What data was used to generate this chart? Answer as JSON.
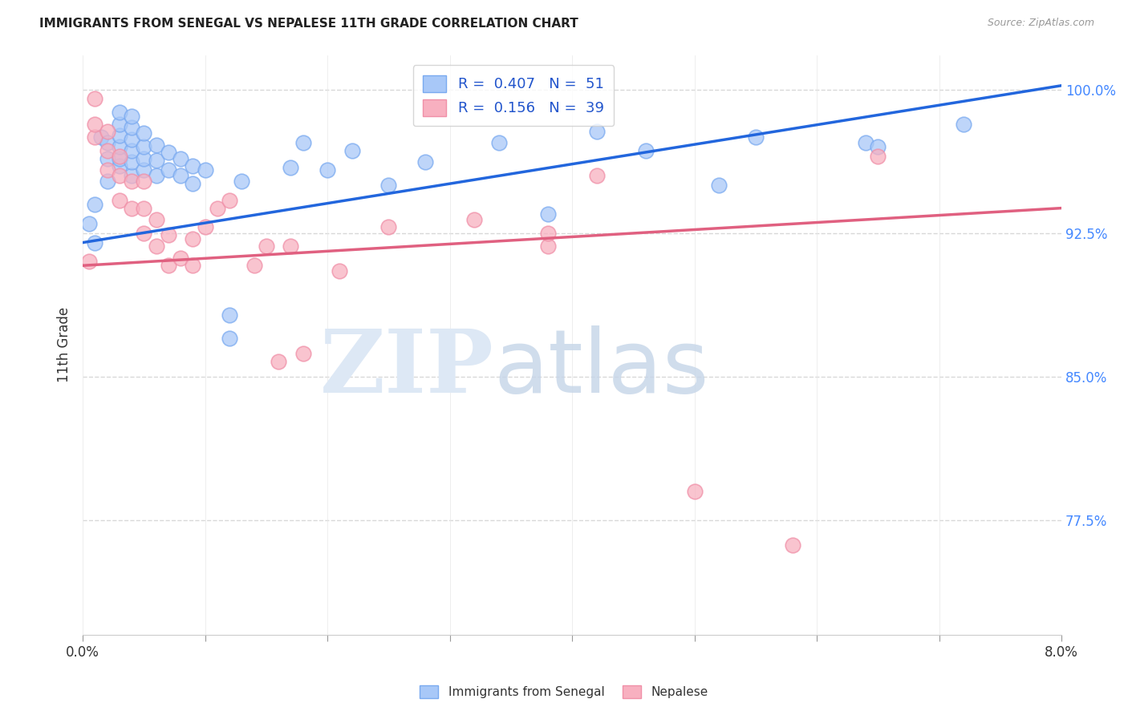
{
  "title": "IMMIGRANTS FROM SENEGAL VS NEPALESE 11TH GRADE CORRELATION CHART",
  "source": "Source: ZipAtlas.com",
  "ylabel": "11th Grade",
  "xmin": 0.0,
  "xmax": 0.08,
  "ymin": 0.715,
  "ymax": 1.018,
  "yticks": [
    0.775,
    0.85,
    0.925,
    1.0
  ],
  "ytick_labels": [
    "77.5%",
    "85.0%",
    "92.5%",
    "100.0%"
  ],
  "xticks": [
    0.0,
    0.01,
    0.02,
    0.03,
    0.04,
    0.05,
    0.06,
    0.07,
    0.08
  ],
  "grid_color": "#d8d8d8",
  "background_color": "#ffffff",
  "blue_color": "#a8c8f8",
  "blue_edge": "#7aaaf0",
  "blue_line": "#2266dd",
  "pink_color": "#f8b0c0",
  "pink_edge": "#f090a8",
  "pink_line": "#e06080",
  "blue_x": [
    0.0005,
    0.001,
    0.001,
    0.0015,
    0.002,
    0.002,
    0.002,
    0.003,
    0.003,
    0.003,
    0.003,
    0.003,
    0.003,
    0.004,
    0.004,
    0.004,
    0.004,
    0.004,
    0.004,
    0.005,
    0.005,
    0.005,
    0.005,
    0.006,
    0.006,
    0.006,
    0.007,
    0.007,
    0.008,
    0.008,
    0.009,
    0.009,
    0.01,
    0.012,
    0.012,
    0.013,
    0.017,
    0.018,
    0.02,
    0.022,
    0.025,
    0.028,
    0.034,
    0.038,
    0.042,
    0.046,
    0.052,
    0.055,
    0.064,
    0.065,
    0.072
  ],
  "blue_y": [
    0.93,
    0.92,
    0.94,
    0.975,
    0.952,
    0.964,
    0.972,
    0.96,
    0.964,
    0.97,
    0.976,
    0.982,
    0.988,
    0.955,
    0.962,
    0.968,
    0.974,
    0.98,
    0.986,
    0.958,
    0.964,
    0.97,
    0.977,
    0.955,
    0.963,
    0.971,
    0.958,
    0.967,
    0.955,
    0.964,
    0.951,
    0.96,
    0.958,
    0.87,
    0.882,
    0.952,
    0.959,
    0.972,
    0.958,
    0.968,
    0.95,
    0.962,
    0.972,
    0.935,
    0.978,
    0.968,
    0.95,
    0.975,
    0.972,
    0.97,
    0.982
  ],
  "pink_x": [
    0.0005,
    0.001,
    0.001,
    0.001,
    0.002,
    0.002,
    0.002,
    0.003,
    0.003,
    0.003,
    0.004,
    0.004,
    0.005,
    0.005,
    0.005,
    0.006,
    0.006,
    0.007,
    0.007,
    0.008,
    0.009,
    0.009,
    0.01,
    0.011,
    0.012,
    0.014,
    0.015,
    0.016,
    0.017,
    0.018,
    0.021,
    0.025,
    0.032,
    0.038,
    0.038,
    0.042,
    0.05,
    0.058,
    0.065
  ],
  "pink_y": [
    0.91,
    0.975,
    0.982,
    0.995,
    0.958,
    0.968,
    0.978,
    0.942,
    0.955,
    0.965,
    0.938,
    0.952,
    0.925,
    0.938,
    0.952,
    0.918,
    0.932,
    0.908,
    0.924,
    0.912,
    0.908,
    0.922,
    0.928,
    0.938,
    0.942,
    0.908,
    0.918,
    0.858,
    0.918,
    0.862,
    0.905,
    0.928,
    0.932,
    0.918,
    0.925,
    0.955,
    0.79,
    0.762,
    0.965
  ],
  "blue_trend_x0": 0.0,
  "blue_trend_y0": 0.92,
  "blue_trend_x1": 0.08,
  "blue_trend_y1": 1.002,
  "pink_trend_x0": 0.0,
  "pink_trend_y0": 0.908,
  "pink_trend_x1": 0.08,
  "pink_trend_y1": 0.938,
  "legend_blue_label": "R =  0.407   N =  51",
  "legend_pink_label": "R =  0.156   N =  39",
  "bottom_label_blue": "Immigrants from Senegal",
  "bottom_label_pink": "Nepalese"
}
